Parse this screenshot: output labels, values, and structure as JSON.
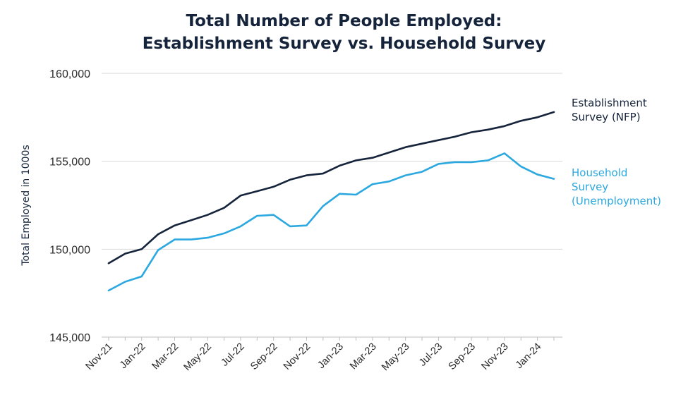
{
  "chart_data": {
    "type": "line",
    "title_line1": "Total Number of People Employed:",
    "title_line2": "Establishment Survey vs. Household Survey",
    "ylabel": "Total Employed in 1000s",
    "ylim": [
      145000,
      160000
    ],
    "yticks": [
      145000,
      150000,
      155000,
      160000
    ],
    "ytick_labels": [
      "145,000",
      "150,000",
      "155,000",
      "160,000"
    ],
    "x": [
      "Nov-21",
      "Dec-21",
      "Jan-22",
      "Feb-22",
      "Mar-22",
      "Apr-22",
      "May-22",
      "Jun-22",
      "Jul-22",
      "Aug-22",
      "Sep-22",
      "Oct-22",
      "Nov-22",
      "Dec-22",
      "Jan-23",
      "Feb-23",
      "Mar-23",
      "Apr-23",
      "May-23",
      "Jun-23",
      "Jul-23",
      "Aug-23",
      "Sep-23",
      "Oct-23",
      "Nov-23",
      "Dec-23",
      "Jan-24",
      "Feb-24"
    ],
    "xtick_labels": [
      "Nov-21",
      "Jan-22",
      "Mar-22",
      "May-22",
      "Jul-22",
      "Sep-22",
      "Nov-22",
      "Jan-23",
      "Mar-23",
      "May-23",
      "Jul-23",
      "Sep-23",
      "Nov-23",
      "Jan-24"
    ],
    "grid": true,
    "series": [
      {
        "name_line1": "Establishment",
        "name_line2": "Survey (NFP)",
        "name_line3": "",
        "color": "#15243b",
        "values": [
          149200,
          149750,
          150000,
          150850,
          151350,
          151650,
          151950,
          152350,
          153050,
          153300,
          153550,
          153950,
          154200,
          154300,
          154750,
          155050,
          155200,
          155500,
          155800,
          156000,
          156200,
          156400,
          156650,
          156800,
          157000,
          157300,
          157500,
          157800
        ]
      },
      {
        "name_line1": "Household",
        "name_line2": "Survey",
        "name_line3": "(Unemployment)",
        "color": "#2ba8e0",
        "values": [
          147650,
          148150,
          148450,
          149950,
          150550,
          150550,
          150650,
          150900,
          151300,
          151900,
          151950,
          151300,
          151350,
          152450,
          153150,
          153100,
          153700,
          153850,
          154200,
          154400,
          154850,
          154950,
          154950,
          155050,
          155450,
          154700,
          154250,
          154000
        ]
      }
    ]
  }
}
